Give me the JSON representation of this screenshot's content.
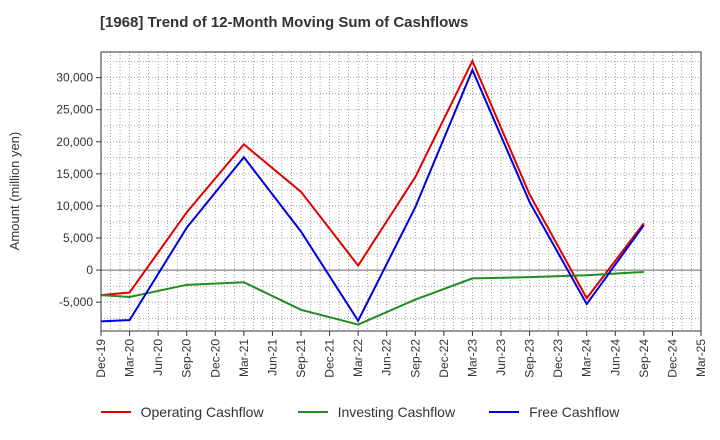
{
  "chart_data": {
    "type": "line",
    "title": "[1968]  Trend of 12-Month Moving Sum of Cashflows",
    "xlabel": "",
    "ylabel": "Amount (million yen)",
    "categories": [
      "Dec-19",
      "Mar-20",
      "Jun-20",
      "Sep-20",
      "Dec-20",
      "Mar-21",
      "Jun-21",
      "Sep-21",
      "Dec-21",
      "Mar-22",
      "Jun-22",
      "Sep-22",
      "Dec-22",
      "Mar-23",
      "Jun-23",
      "Sep-23",
      "Dec-23",
      "Mar-24",
      "Jun-24",
      "Sep-24",
      "Dec-24",
      "Mar-25"
    ],
    "ylim": [
      -9500,
      34000
    ],
    "yticks": [
      -5000,
      0,
      5000,
      10000,
      15000,
      20000,
      25000,
      30000
    ],
    "ytick_labels": [
      "-5,000",
      "0",
      "5,000",
      "10,000",
      "15,000",
      "20,000",
      "25,000",
      "30,000"
    ],
    "grid": true,
    "legend_position": "bottom",
    "series": [
      {
        "name": "Operating Cashflow",
        "color": "#e00000",
        "values": [
          -3900,
          -3500,
          null,
          9000,
          null,
          19600,
          null,
          12200,
          null,
          700,
          null,
          14500,
          null,
          32600,
          null,
          11800,
          null,
          -4400,
          null,
          7300,
          null,
          null
        ]
      },
      {
        "name": "Investing Cashflow",
        "color": "#228b22",
        "values": [
          -3900,
          -4200,
          null,
          -2300,
          null,
          -1900,
          null,
          -6200,
          null,
          -8500,
          null,
          -4600,
          null,
          -1300,
          null,
          -1100,
          null,
          -800,
          null,
          -300,
          null,
          null
        ]
      },
      {
        "name": "Free Cashflow",
        "color": "#0000dd",
        "values": [
          -8000,
          -7800,
          null,
          6600,
          null,
          17600,
          null,
          6000,
          null,
          -7900,
          null,
          9800,
          null,
          31200,
          null,
          10600,
          null,
          -5300,
          null,
          7000,
          null,
          null
        ]
      }
    ]
  }
}
